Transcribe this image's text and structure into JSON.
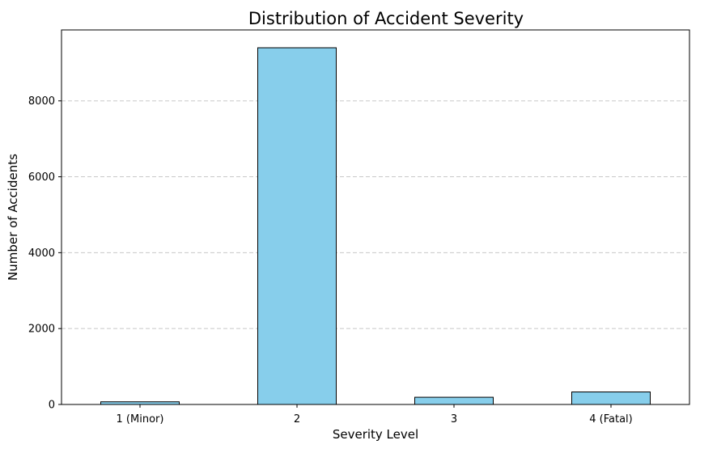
{
  "chart_data": {
    "type": "bar",
    "title": "Distribution of Accident Severity",
    "xlabel": "Severity Level",
    "ylabel": "Number of Accidents",
    "categories": [
      "1 (Minor)",
      "2",
      "3",
      "4 (Fatal)"
    ],
    "values": [
      70,
      9400,
      190,
      330
    ],
    "ylim": [
      0,
      9870
    ],
    "yticks": [
      0,
      2000,
      4000,
      6000,
      8000
    ],
    "ytick_labels": [
      "0",
      "2000",
      "4000",
      "6000",
      "8000"
    ],
    "grid": "y-dashed",
    "bar_color": "#87ceeb",
    "bar_edge_color": "#000000",
    "grid_color": "#c8c8c8"
  }
}
